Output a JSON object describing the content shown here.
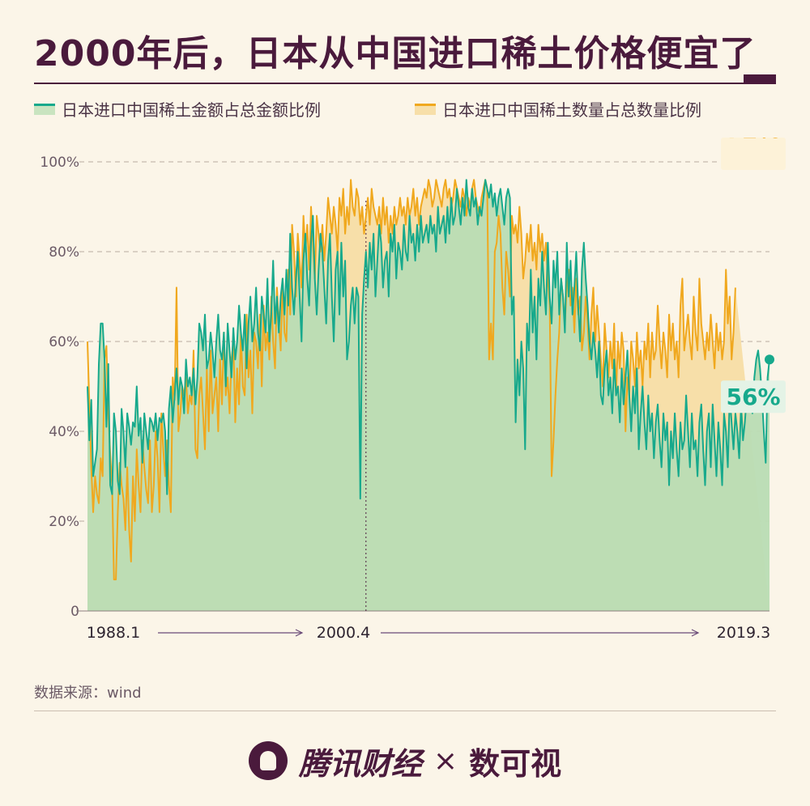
{
  "title": "2000年后，日本从中国进口稀土价格便宜了",
  "source": "数据来源：wind",
  "footer": {
    "brand1": "腾讯财经",
    "times": "×",
    "brand2": "数可视"
  },
  "colors": {
    "green_line": "#17a98c",
    "green_fill": "#b9dcb4",
    "orange_line": "#f0a81e",
    "orange_fill": "#f7dfa9",
    "text": "#4a1a3c"
  },
  "chart_data": {
    "type": "area",
    "x_start": "1988.1",
    "x_mark": "2000.4",
    "x_end": "2019.3",
    "x_labels": [
      "1988.1",
      "2000.4",
      "2019.3"
    ],
    "ylim": [
      0,
      100
    ],
    "y_ticks": [
      0,
      20,
      40,
      60,
      80,
      100
    ],
    "y_tick_labels": [
      "0",
      "20%",
      "40%",
      "60%",
      "80%",
      "100%"
    ],
    "grid": true,
    "legend_position": "top",
    "series": [
      {
        "name": "日本进口中国稀土金额占总金额比例",
        "color": "#17a98c",
        "end_label": "56%",
        "values": [
          50,
          38,
          47,
          30,
          33,
          36,
          55,
          64,
          64,
          56,
          41,
          55,
          28,
          26,
          44,
          40,
          29,
          26,
          45,
          40,
          32,
          44,
          41,
          37,
          42,
          41,
          50,
          39,
          43,
          33,
          44,
          40,
          36,
          43,
          42,
          40,
          44,
          38,
          43,
          42,
          44,
          40,
          26,
          45,
          50,
          42,
          48,
          54,
          46,
          52,
          50,
          44,
          56,
          50,
          52,
          48,
          54,
          46,
          52,
          64,
          62,
          58,
          66,
          54,
          56,
          62,
          58,
          52,
          60,
          66,
          58,
          56,
          62,
          50,
          64,
          58,
          52,
          63,
          56,
          60,
          68,
          62,
          58,
          66,
          54,
          64,
          70,
          60,
          64,
          72,
          62,
          58,
          70,
          66,
          62,
          74,
          60,
          66,
          78,
          64,
          70,
          62,
          70,
          74,
          66,
          76,
          68,
          84,
          72,
          66,
          74,
          80,
          70,
          60,
          78,
          84,
          74,
          68,
          82,
          88,
          74,
          66,
          76,
          84,
          80,
          72,
          64,
          78,
          84,
          70,
          60,
          76,
          80,
          66,
          82,
          70,
          78,
          56,
          60,
          68,
          72,
          64,
          72,
          70,
          25,
          66,
          74,
          80,
          72,
          82,
          76,
          84,
          70,
          78,
          86,
          82,
          72,
          78,
          80,
          70,
          84,
          80,
          86,
          74,
          82,
          80,
          76,
          86,
          80,
          78,
          88,
          82,
          84,
          78,
          86,
          80,
          88,
          82,
          84,
          86,
          82,
          88,
          84,
          86,
          80,
          90,
          84,
          86,
          88,
          82,
          90,
          84,
          92,
          86,
          88,
          94,
          90,
          86,
          92,
          88,
          96,
          90,
          88,
          94,
          90,
          92,
          86,
          90,
          88,
          92,
          96,
          94,
          92,
          95,
          90,
          93,
          88,
          92,
          94,
          90,
          86,
          92,
          94,
          92,
          66,
          70,
          42,
          56,
          48,
          60,
          54,
          36,
          64,
          58,
          76,
          62,
          70,
          56,
          74,
          68,
          80,
          72,
          66,
          82,
          70,
          64,
          78,
          72,
          80,
          66,
          74,
          70,
          62,
          82,
          70,
          78,
          66,
          72,
          80,
          68,
          60,
          76,
          82,
          74,
          68,
          60,
          56,
          62,
          58,
          52,
          60,
          48,
          46,
          54,
          58,
          48,
          52,
          44,
          56,
          48,
          50,
          42,
          54,
          46,
          52,
          58,
          48,
          40,
          50,
          44,
          54,
          36,
          44,
          50,
          42,
          36,
          48,
          40,
          44,
          34,
          42,
          46,
          38,
          32,
          44,
          38,
          42,
          28,
          40,
          34,
          44,
          36,
          30,
          42,
          36,
          38,
          48,
          40,
          32,
          44,
          36,
          38,
          30,
          42,
          46,
          36,
          28,
          40,
          44,
          32,
          46,
          38,
          30,
          42,
          36,
          28,
          44,
          40,
          32,
          48,
          42,
          36,
          44,
          40,
          34,
          46,
          38,
          42,
          48,
          46,
          50,
          44,
          52,
          56,
          58,
          54,
          48,
          40,
          33,
          52,
          56
        ]
      },
      {
        "name": "日本进口中国稀土数量占总数量比例",
        "color": "#f0a81e",
        "end_label": "72%",
        "values": [
          60,
          46,
          32,
          22,
          30,
          26,
          24,
          34,
          30,
          56,
          59,
          44,
          35,
          28,
          7,
          7,
          22,
          33,
          28,
          25,
          18,
          32,
          18,
          11,
          30,
          20,
          36,
          28,
          22,
          38,
          32,
          27,
          24,
          38,
          22,
          28,
          40,
          34,
          22,
          44,
          36,
          30,
          38,
          28,
          22,
          52,
          47,
          72,
          40,
          44,
          50,
          48,
          52,
          44,
          48,
          46,
          58,
          36,
          34,
          48,
          52,
          44,
          36,
          54,
          40,
          58,
          44,
          48,
          52,
          40,
          56,
          46,
          62,
          48,
          52,
          44,
          56,
          60,
          42,
          54,
          46,
          62,
          50,
          48,
          66,
          52,
          58,
          44,
          62,
          60,
          54,
          66,
          50,
          68,
          58,
          62,
          56,
          70,
          60,
          54,
          72,
          64,
          58,
          74,
          62,
          60,
          76,
          66,
          86,
          80,
          70,
          84,
          78,
          72,
          88,
          80,
          86,
          76,
          90,
          82,
          74,
          88,
          84,
          80,
          86,
          78,
          84,
          92,
          88,
          84,
          90,
          86,
          80,
          92,
          88,
          94,
          84,
          90,
          86,
          96,
          90,
          88,
          94,
          92,
          86,
          90,
          84,
          88,
          92,
          86,
          94,
          90,
          88,
          86,
          90,
          84,
          92,
          86,
          90,
          82,
          88,
          84,
          90,
          86,
          88,
          92,
          88,
          90,
          86,
          92,
          88,
          90,
          94,
          88,
          92,
          86,
          90,
          92,
          94,
          92,
          96,
          94,
          90,
          92,
          96,
          94,
          92,
          90,
          94,
          96,
          92,
          94,
          90,
          92,
          96,
          94,
          92,
          90,
          94,
          92,
          88,
          92,
          90,
          94,
          96,
          92,
          90,
          88,
          92,
          94,
          96,
          94,
          56,
          64,
          56,
          80,
          82,
          88,
          84,
          72,
          66,
          80,
          76,
          70,
          88,
          84,
          86,
          82,
          90,
          84,
          74,
          78,
          84,
          80,
          86,
          78,
          82,
          76,
          86,
          80,
          84,
          78,
          82,
          74,
          68,
          30,
          38,
          48,
          56,
          62,
          74,
          70,
          64,
          72,
          76,
          68,
          72,
          62,
          74,
          66,
          70,
          58,
          62,
          70,
          64,
          56,
          66,
          72,
          60,
          68,
          62,
          56,
          50,
          64,
          58,
          52,
          60,
          54,
          64,
          48,
          60,
          54,
          62,
          58,
          40,
          52,
          48,
          60,
          56,
          50,
          62,
          54,
          58,
          50,
          60,
          56,
          64,
          52,
          62,
          56,
          58,
          68,
          60,
          54,
          62,
          58,
          52,
          66,
          58,
          64,
          56,
          60,
          52,
          68,
          74,
          58,
          62,
          66,
          60,
          56,
          70,
          62,
          58,
          74,
          64,
          60,
          56,
          62,
          58,
          66,
          60,
          54,
          64,
          58,
          62,
          56,
          60,
          76,
          64,
          70,
          56,
          62,
          72
        ]
      }
    ]
  }
}
